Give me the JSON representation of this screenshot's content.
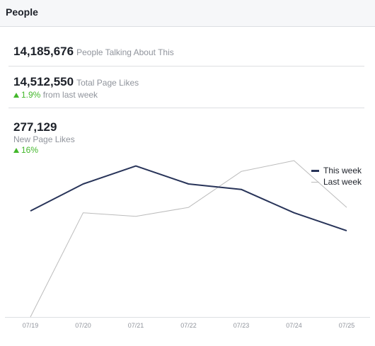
{
  "header": {
    "title": "People"
  },
  "metrics": {
    "talking": {
      "value": "14,185,676",
      "label": "People Talking About This"
    },
    "total_likes": {
      "value": "14,512,550",
      "label": "Total Page Likes",
      "change": "1.9%",
      "change_suffix": "from last week"
    },
    "new_likes": {
      "value": "277,129",
      "label": "New Page Likes",
      "change": "16%"
    }
  },
  "legend": {
    "this_week": "This week",
    "last_week": "Last week"
  },
  "colors": {
    "this_week": "#283459",
    "last_week": "#bcbcbc",
    "positive": "#42b72a"
  },
  "chart_data": {
    "type": "line",
    "x": [
      "07/19",
      "07/20",
      "07/21",
      "07/22",
      "07/23",
      "07/24",
      "07/25"
    ],
    "series": [
      {
        "name": "This week",
        "values": [
          59,
          74,
          84,
          74,
          71,
          58,
          48
        ]
      },
      {
        "name": "Last week",
        "values": [
          0,
          58,
          56,
          61,
          81,
          87,
          61
        ]
      }
    ],
    "ylim": [
      0,
      100
    ],
    "grid": false,
    "legend": "top-right"
  }
}
